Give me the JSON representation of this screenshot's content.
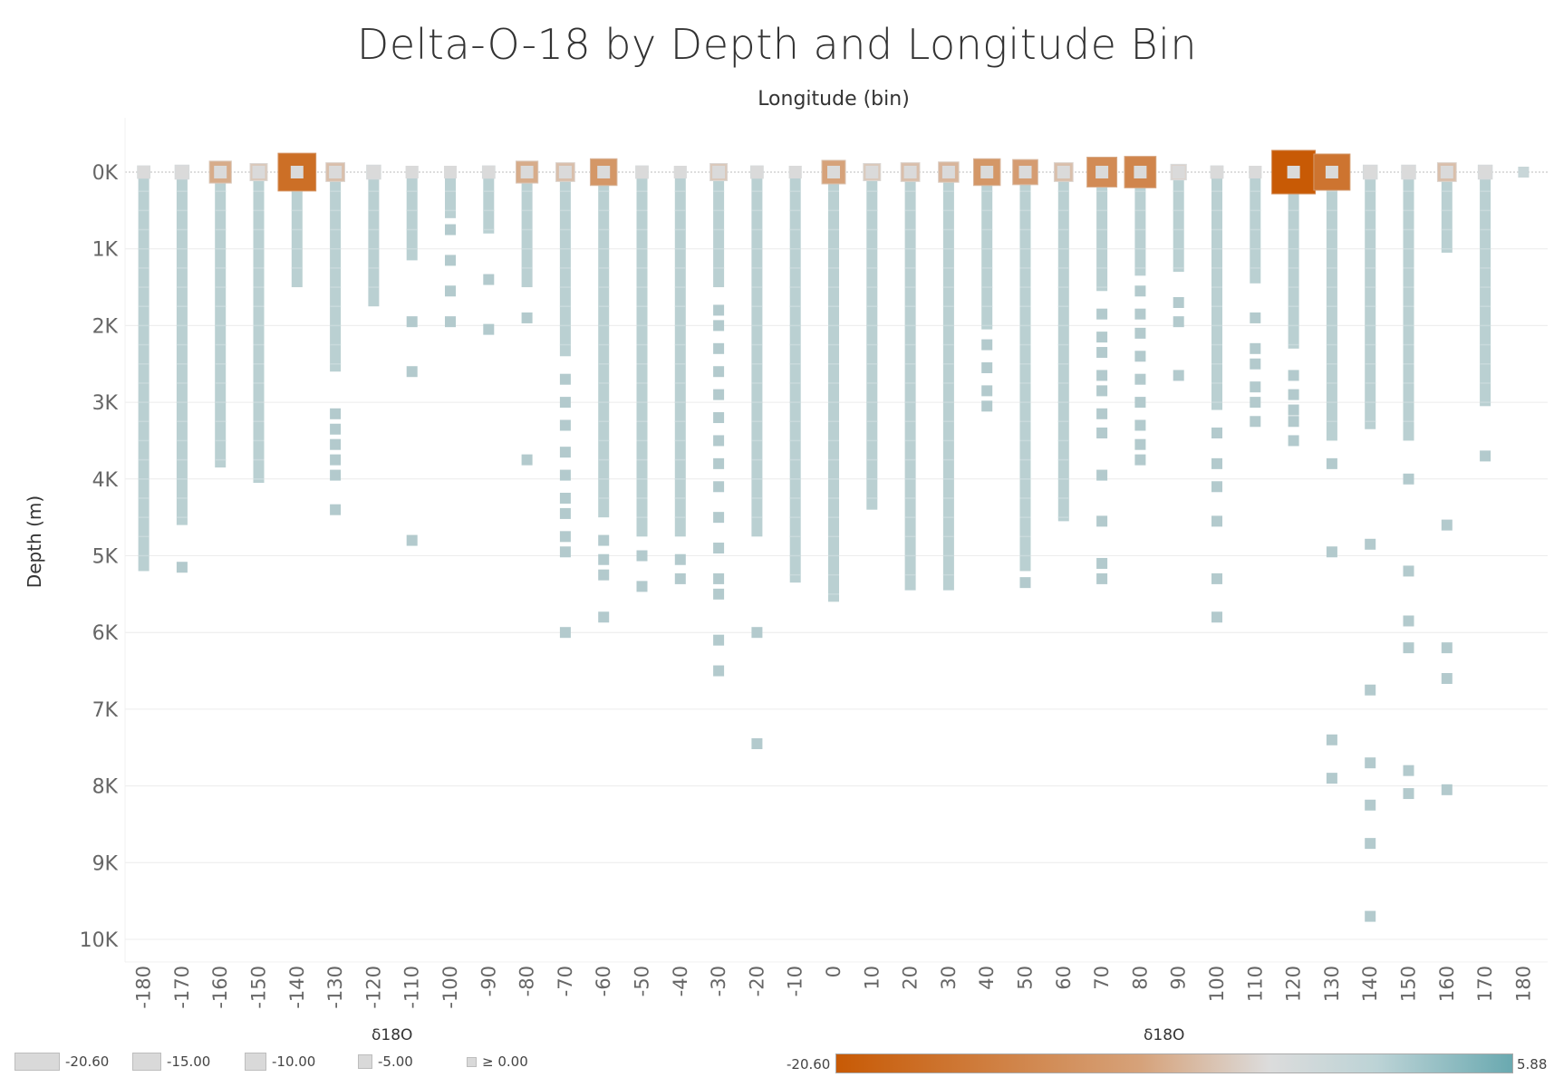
{
  "chart_data": {
    "type": "scatter",
    "title": "Delta-O-18 by Depth and Longitude Bin",
    "xlabel": "Longitude (bin)",
    "ylabel": "Depth (m)",
    "x_ticks": [
      "-180",
      "-170",
      "-160",
      "-150",
      "-140",
      "-130",
      "-120",
      "-110",
      "-100",
      "-90",
      "-80",
      "-70",
      "-60",
      "-50",
      "-40",
      "-30",
      "-20",
      "-10",
      "0",
      "10",
      "20",
      "30",
      "40",
      "50",
      "60",
      "70",
      "80",
      "90",
      "100",
      "110",
      "120",
      "130",
      "140",
      "150",
      "160",
      "170",
      "180"
    ],
    "y_ticks": [
      "0K",
      "1K",
      "2K",
      "3K",
      "4K",
      "5K",
      "6K",
      "7K",
      "8K",
      "9K",
      "10K"
    ],
    "xlim": [
      -180,
      180
    ],
    "ylim": [
      0,
      10000
    ],
    "y_inverted": true,
    "grid": true,
    "size_legend": {
      "title": "δ18O",
      "labels": [
        "-20.60",
        "-15.00",
        "-10.00",
        "-5.00",
        "≥ 0.00"
      ]
    },
    "color_legend": {
      "title": "δ18O",
      "min": "-20.60",
      "max": "5.88",
      "colors": [
        "#c85a05",
        "#dcdcdc",
        "#6aa9b0"
      ]
    },
    "columns": [
      {
        "lon": -180,
        "d18o_min": -1.0,
        "max_depth": 5200,
        "outliers": []
      },
      {
        "lon": -170,
        "d18o_min": -2.0,
        "max_depth": 4600,
        "outliers": [
          5150
        ]
      },
      {
        "lon": -160,
        "d18o_min": -7.0,
        "max_depth": 3850,
        "outliers": []
      },
      {
        "lon": -150,
        "d18o_min": -4.0,
        "max_depth": 4050,
        "outliers": []
      },
      {
        "lon": -140,
        "d18o_min": -17.0,
        "max_depth": 1500,
        "outliers": []
      },
      {
        "lon": -130,
        "d18o_min": -5.0,
        "max_depth": 2600,
        "outliers": [
          3150,
          3350,
          3550,
          3750,
          3950,
          4400
        ]
      },
      {
        "lon": -120,
        "d18o_min": -2.0,
        "max_depth": 1750,
        "outliers": []
      },
      {
        "lon": -110,
        "d18o_min": -0.5,
        "max_depth": 1150,
        "outliers": [
          1950,
          2600,
          4800
        ]
      },
      {
        "lon": -100,
        "d18o_min": -0.5,
        "max_depth": 600,
        "outliers": [
          750,
          1150,
          1550,
          1950
        ]
      },
      {
        "lon": -90,
        "d18o_min": -1.0,
        "max_depth": 800,
        "outliers": [
          1400,
          2050
        ]
      },
      {
        "lon": -80,
        "d18o_min": -7.0,
        "max_depth": 1500,
        "outliers": [
          1900,
          3750
        ]
      },
      {
        "lon": -70,
        "d18o_min": -5.0,
        "max_depth": 2400,
        "outliers": [
          2700,
          3000,
          3300,
          3650,
          3950,
          4250,
          4450,
          4750,
          4950,
          6000
        ]
      },
      {
        "lon": -60,
        "d18o_min": -10.0,
        "max_depth": 4500,
        "outliers": [
          4800,
          5050,
          5250,
          5800
        ]
      },
      {
        "lon": -50,
        "d18o_min": -1.0,
        "max_depth": 4750,
        "outliers": [
          5000,
          5400
        ]
      },
      {
        "lon": -40,
        "d18o_min": -0.5,
        "max_depth": 4750,
        "outliers": [
          5050,
          5300
        ]
      },
      {
        "lon": -30,
        "d18o_min": -4.0,
        "max_depth": 1500,
        "outliers": [
          1800,
          2000,
          2300,
          2600,
          2900,
          3200,
          3500,
          3800,
          4100,
          4500,
          4900,
          5300,
          5500,
          6100,
          6500
        ]
      },
      {
        "lon": -20,
        "d18o_min": -1.0,
        "max_depth": 4750,
        "outliers": [
          6000,
          7450
        ]
      },
      {
        "lon": -10,
        "d18o_min": -0.5,
        "max_depth": 5350,
        "outliers": []
      },
      {
        "lon": 0,
        "d18o_min": -8.0,
        "max_depth": 5600,
        "outliers": []
      },
      {
        "lon": 10,
        "d18o_min": -4.0,
        "max_depth": 4400,
        "outliers": []
      },
      {
        "lon": 20,
        "d18o_min": -5.0,
        "max_depth": 5450,
        "outliers": []
      },
      {
        "lon": 30,
        "d18o_min": -6.0,
        "max_depth": 5450,
        "outliers": []
      },
      {
        "lon": 40,
        "d18o_min": -10.0,
        "max_depth": 2050,
        "outliers": [
          2250,
          2550,
          2850,
          3050
        ]
      },
      {
        "lon": 50,
        "d18o_min": -9.0,
        "max_depth": 5200,
        "outliers": [
          5350
        ]
      },
      {
        "lon": 60,
        "d18o_min": -5.0,
        "max_depth": 4550,
        "outliers": []
      },
      {
        "lon": 70,
        "d18o_min": -12.0,
        "max_depth": 1550,
        "outliers": [
          1850,
          2150,
          2350,
          2650,
          2850,
          3150,
          3400,
          3950,
          4550,
          5100,
          5300
        ]
      },
      {
        "lon": 80,
        "d18o_min": -13.0,
        "max_depth": 1350,
        "outliers": [
          1550,
          1850,
          2100,
          2400,
          2700,
          3000,
          3300,
          3550,
          3750
        ]
      },
      {
        "lon": 90,
        "d18o_min": -3.0,
        "max_depth": 1300,
        "outliers": [
          1700,
          1950,
          2650
        ]
      },
      {
        "lon": 100,
        "d18o_min": -1.0,
        "max_depth": 3100,
        "outliers": [
          3400,
          3800,
          4100,
          4550,
          5300,
          5800
        ]
      },
      {
        "lon": 110,
        "d18o_min": -0.5,
        "max_depth": 1450,
        "outliers": [
          1900,
          2300,
          2500,
          2800,
          3000,
          3250
        ]
      },
      {
        "lon": 120,
        "d18o_min": -20.6,
        "max_depth": 2300,
        "outliers": [
          2650,
          2900,
          3100,
          3250,
          3500
        ]
      },
      {
        "lon": 130,
        "d18o_min": -16.0,
        "max_depth": 3500,
        "outliers": [
          3800,
          4950,
          7400,
          7900
        ]
      },
      {
        "lon": 140,
        "d18o_min": -2.0,
        "max_depth": 3350,
        "outliers": [
          4850,
          6750,
          7700,
          8250,
          8750,
          9700
        ]
      },
      {
        "lon": 150,
        "d18o_min": -2.0,
        "max_depth": 3500,
        "outliers": [
          4000,
          5200,
          5850,
          6200,
          7800,
          8100
        ]
      },
      {
        "lon": 160,
        "d18o_min": -5.0,
        "max_depth": 1050,
        "outliers": [
          4600,
          6200,
          6600,
          8050
        ]
      },
      {
        "lon": 170,
        "d18o_min": -2.0,
        "max_depth": 3050,
        "outliers": [
          3700
        ]
      },
      {
        "lon": 180,
        "d18o_min": 0.5,
        "max_depth": 0,
        "outliers": []
      }
    ]
  }
}
